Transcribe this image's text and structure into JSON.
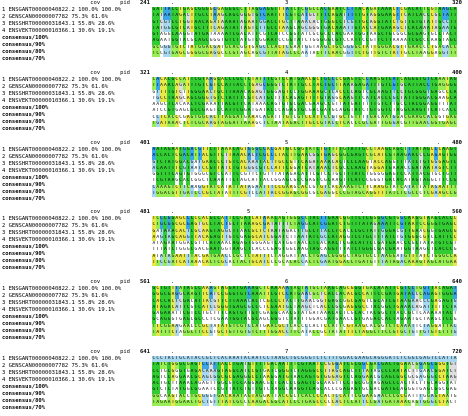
{
  "columns": {
    "cov": "cov",
    "pid": "pid"
  },
  "sequences": [
    {
      "label": "1 ENSGANT00000040822.2",
      "cov": "100.0%",
      "pid": "100.0%"
    },
    {
      "label": "2 GENSCAN00000007782",
      "cov": "75.3%",
      "pid": "61.6%"
    },
    {
      "label": "3 ENSSHRT00000031843.1",
      "cov": "55.8%",
      "pid": "28.6%"
    },
    {
      "label": "4 ENSVEKT00000010366.1",
      "cov": "30.6%",
      "pid": "19.1%"
    }
  ],
  "consensus": [
    "consensus/100%",
    "consensus/90%",
    "consensus/80%",
    "consensus/70%"
  ],
  "blocks": [
    {
      "start": "241",
      "end": "320",
      "ruler": [
        ".",
        ".",
        ".",
        "3",
        ".",
        ".",
        ".",
        "."
      ]
    },
    {
      "start": "321",
      "end": "400",
      "ruler": [
        ".",
        ".",
        ".",
        "4",
        ".",
        ".",
        ".",
        "."
      ]
    },
    {
      "start": "401",
      "end": "480",
      "ruler": [
        ".",
        ".",
        ".",
        "5",
        ".",
        ".",
        ".",
        "."
      ]
    },
    {
      "start": "481",
      "end": "560",
      "ruler": [
        ".",
        ".",
        "5",
        ".",
        ".",
        ".",
        ".",
        "."
      ]
    },
    {
      "start": "561",
      "end": "640",
      "ruler": [
        ".",
        ".",
        ".",
        "6",
        ".",
        ".",
        ".",
        "."
      ]
    },
    {
      "start": "641",
      "end": "720",
      "ruler": [
        ".",
        ".",
        ".",
        "7",
        ".",
        ".",
        ".",
        "."
      ]
    }
  ],
  "colors": {
    "identity_green": "#33cc33",
    "light_green": "#99ee55",
    "yellow": "#e8e84a",
    "blue": "#3aa6e8",
    "light_blue": "#a8d8f0",
    "gap_gray": "#dddddd"
  }
}
